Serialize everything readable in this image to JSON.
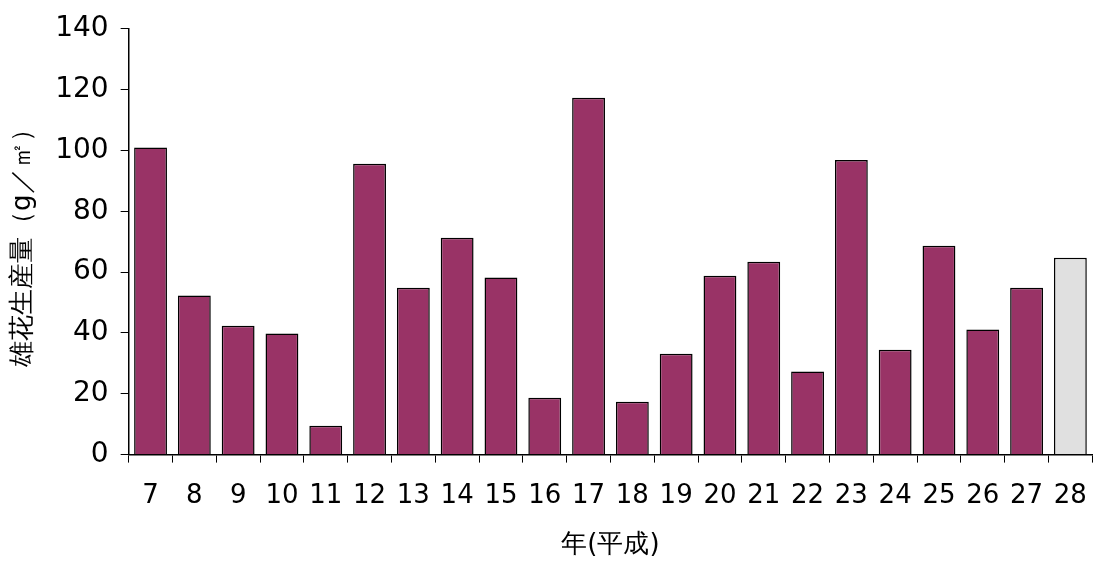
{
  "chart_data": {
    "type": "bar",
    "xlabel": "年(平成)",
    "ylabel": "雄花生産量（g／㎡）",
    "categories": [
      "7",
      "8",
      "9",
      "10",
      "11",
      "12",
      "13",
      "14",
      "15",
      "16",
      "17",
      "18",
      "19",
      "20",
      "21",
      "22",
      "23",
      "24",
      "25",
      "26",
      "27",
      "28"
    ],
    "values": [
      101,
      52.3,
      42.4,
      39.8,
      9.5,
      95.6,
      54.9,
      71.3,
      58.2,
      18.7,
      117.3,
      17.4,
      33.2,
      58.8,
      63.4,
      27.3,
      96.9,
      34.5,
      68.7,
      41.1,
      54.9,
      64.7
    ],
    "colors": [
      "#993366",
      "#993366",
      "#993366",
      "#993366",
      "#993366",
      "#993366",
      "#993366",
      "#993366",
      "#993366",
      "#993366",
      "#993366",
      "#993366",
      "#993366",
      "#993366",
      "#993366",
      "#993366",
      "#993366",
      "#993366",
      "#993366",
      "#993366",
      "#993366",
      "#e0e0e0"
    ],
    "ylim": [
      0,
      140
    ],
    "yticks": [
      0,
      20,
      40,
      60,
      80,
      100,
      120,
      140
    ],
    "grid": false,
    "legend": false
  }
}
